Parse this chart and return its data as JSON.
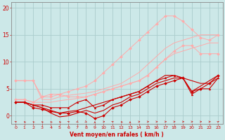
{
  "background_color": "#cce8e8",
  "grid_color": "#aacccc",
  "axis_color": "#888888",
  "text_color": "#cc0000",
  "xlabel": "Vent moyen/en rafales ( km/h )",
  "xlim": [
    -0.5,
    23.5
  ],
  "ylim": [
    -1.5,
    21
  ],
  "yticks": [
    0,
    5,
    10,
    15,
    20
  ],
  "xticks": [
    0,
    1,
    2,
    3,
    4,
    5,
    6,
    7,
    8,
    9,
    10,
    11,
    12,
    13,
    14,
    15,
    16,
    17,
    18,
    19,
    20,
    21,
    22,
    23
  ],
  "series": [
    {
      "x": [
        0,
        1,
        2,
        3,
        4,
        5,
        6,
        7,
        8,
        9,
        10,
        11,
        12,
        13,
        14,
        15,
        16,
        17,
        18,
        19,
        20,
        21,
        22,
        23
      ],
      "y": [
        6.5,
        6.5,
        6.5,
        3.0,
        3.0,
        3.5,
        3.8,
        4.0,
        4.2,
        4.5,
        5.0,
        5.5,
        6.0,
        7.0,
        8.0,
        9.5,
        11.0,
        12.5,
        13.5,
        14.0,
        14.5,
        15.0,
        15.0,
        15.0
      ],
      "color": "#ffaaaa",
      "lw": 0.7,
      "marker": null,
      "ms": 0
    },
    {
      "x": [
        0,
        1,
        2,
        3,
        4,
        5,
        6,
        7,
        8,
        9,
        10,
        11,
        12,
        13,
        14,
        15,
        16,
        17,
        18,
        19,
        20,
        21,
        22,
        23
      ],
      "y": [
        6.5,
        6.5,
        6.5,
        3.5,
        3.5,
        4.0,
        4.5,
        5.0,
        5.5,
        6.5,
        8.0,
        9.5,
        11.0,
        12.5,
        14.0,
        15.5,
        17.0,
        18.5,
        18.5,
        17.5,
        16.0,
        14.5,
        14.0,
        15.0
      ],
      "color": "#ffaaaa",
      "lw": 0.7,
      "marker": "D",
      "ms": 2
    },
    {
      "x": [
        0,
        1,
        2,
        3,
        4,
        5,
        6,
        7,
        8,
        9,
        10,
        11,
        12,
        13,
        14,
        15,
        16,
        17,
        18,
        19,
        20,
        21,
        22,
        23
      ],
      "y": [
        3.0,
        3.0,
        2.5,
        2.5,
        2.5,
        2.8,
        3.0,
        3.2,
        3.5,
        4.0,
        4.5,
        5.0,
        5.5,
        6.0,
        6.5,
        7.5,
        9.0,
        10.5,
        11.5,
        12.0,
        12.5,
        13.0,
        13.5,
        13.5
      ],
      "color": "#ffaaaa",
      "lw": 0.7,
      "marker": null,
      "ms": 0
    },
    {
      "x": [
        0,
        1,
        2,
        3,
        4,
        5,
        6,
        7,
        8,
        9,
        10,
        11,
        12,
        13,
        14,
        15,
        16,
        17,
        18,
        19,
        20,
        21,
        22,
        23
      ],
      "y": [
        3.0,
        3.0,
        2.5,
        3.5,
        4.0,
        4.0,
        3.5,
        3.5,
        3.5,
        4.0,
        4.5,
        5.0,
        5.5,
        6.0,
        6.5,
        7.5,
        9.0,
        10.5,
        12.0,
        13.0,
        13.0,
        11.5,
        11.5,
        11.5
      ],
      "color": "#ffaaaa",
      "lw": 0.7,
      "marker": "D",
      "ms": 2
    },
    {
      "x": [
        0,
        1,
        2,
        3,
        4,
        5,
        6,
        7,
        8,
        9,
        10,
        11,
        12,
        13,
        14,
        15,
        16,
        17,
        18,
        19,
        20,
        21,
        22,
        23
      ],
      "y": [
        2.5,
        2.5,
        2.0,
        1.5,
        1.0,
        0.5,
        0.8,
        1.0,
        1.5,
        2.0,
        2.5,
        3.0,
        3.5,
        4.0,
        4.5,
        5.5,
        6.5,
        7.5,
        7.5,
        7.0,
        6.5,
        6.0,
        6.0,
        7.0
      ],
      "color": "#cc0000",
      "lw": 0.8,
      "marker": null,
      "ms": 0
    },
    {
      "x": [
        0,
        1,
        2,
        3,
        4,
        5,
        6,
        7,
        8,
        9,
        10,
        11,
        12,
        13,
        14,
        15,
        16,
        17,
        18,
        19,
        20,
        21,
        22,
        23
      ],
      "y": [
        2.5,
        2.5,
        2.0,
        2.0,
        1.5,
        1.5,
        1.5,
        2.5,
        3.0,
        1.5,
        2.0,
        3.0,
        3.5,
        4.0,
        4.5,
        5.5,
        6.5,
        7.0,
        7.5,
        7.0,
        4.0,
        5.0,
        5.0,
        7.0
      ],
      "color": "#cc0000",
      "lw": 0.8,
      "marker": "^",
      "ms": 2
    },
    {
      "x": [
        0,
        1,
        2,
        3,
        4,
        5,
        6,
        7,
        8,
        9,
        10,
        11,
        12,
        13,
        14,
        15,
        16,
        17,
        18,
        19,
        20,
        21,
        22,
        23
      ],
      "y": [
        2.5,
        2.5,
        2.0,
        1.5,
        0.5,
        -0.2,
        0.0,
        0.5,
        1.0,
        0.5,
        1.0,
        2.0,
        2.5,
        3.5,
        4.0,
        5.0,
        6.0,
        6.5,
        7.0,
        7.0,
        4.5,
        5.5,
        6.5,
        7.5
      ],
      "color": "#cc0000",
      "lw": 0.8,
      "marker": null,
      "ms": 0
    },
    {
      "x": [
        0,
        1,
        2,
        3,
        4,
        5,
        6,
        7,
        8,
        9,
        10,
        11,
        12,
        13,
        14,
        15,
        16,
        17,
        18,
        19,
        20,
        21,
        22,
        23
      ],
      "y": [
        2.5,
        2.5,
        1.5,
        1.2,
        0.8,
        0.5,
        0.5,
        0.8,
        0.5,
        -0.5,
        0.0,
        1.5,
        2.0,
        3.0,
        3.5,
        4.5,
        5.5,
        6.0,
        6.5,
        7.0,
        4.5,
        5.0,
        6.0,
        7.5
      ],
      "color": "#cc0000",
      "lw": 0.8,
      "marker": "D",
      "ms": 2
    }
  ]
}
